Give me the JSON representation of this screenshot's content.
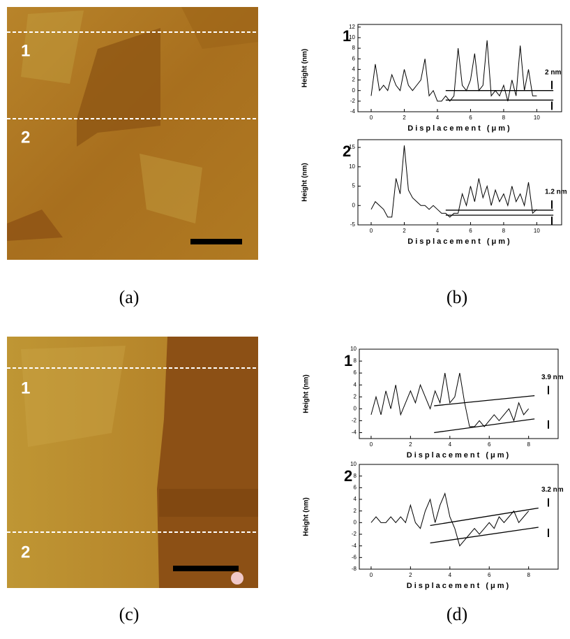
{
  "images": [
    {
      "caption": "(a)",
      "line_labels": [
        "1",
        "2"
      ]
    },
    {
      "caption": "(c)",
      "line_labels": [
        "1",
        "2"
      ]
    }
  ],
  "captions": [
    "(b)",
    "(d)"
  ],
  "chart_data": [
    {
      "type": "line",
      "panel_label": "1",
      "y_label": "Height (nm)",
      "x_label": "Displacement (μm)",
      "annotation": "2 nm",
      "color": "#000000",
      "x": [
        0,
        0.25,
        0.5,
        0.75,
        1,
        1.25,
        1.5,
        1.75,
        2,
        2.25,
        2.5,
        2.75,
        3,
        3.25,
        3.5,
        3.75,
        4,
        4.25,
        4.5,
        4.75,
        5,
        5.25,
        5.5,
        5.75,
        6,
        6.25,
        6.5,
        6.75,
        7,
        7.25,
        7.5,
        7.75,
        8,
        8.25,
        8.5,
        8.75,
        9,
        9.25,
        9.5,
        9.75,
        10
      ],
      "values": [
        -1,
        5,
        0,
        1,
        0,
        3,
        1,
        0,
        4,
        1,
        0,
        1,
        2,
        6,
        -1,
        0,
        -2,
        -2,
        -1,
        -2,
        -1,
        8,
        1,
        0,
        2,
        7,
        0,
        1,
        9.5,
        -1,
        0,
        -1,
        1,
        -2,
        2,
        -1,
        8.5,
        0,
        4,
        -1,
        -1
      ],
      "ref_lines": [
        {
          "x": [
            4.5,
            11
          ],
          "y": [
            0,
            0
          ]
        },
        {
          "x": [
            4.5,
            11
          ],
          "y": [
            -1.8,
            -1.8
          ]
        }
      ],
      "xlim": [
        -0.8,
        11.5
      ],
      "ylim": [
        -4,
        12.5
      ],
      "xticks": [
        0,
        2,
        4,
        6,
        8,
        10
      ],
      "yticks": [
        -4,
        -2,
        0,
        2,
        4,
        6,
        8,
        10,
        12
      ]
    },
    {
      "type": "line",
      "panel_label": "2",
      "y_label": "Height (nm)",
      "x_label": "Displacement (μm)",
      "annotation": "1.2 nm",
      "color": "#000000",
      "x": [
        0,
        0.25,
        0.5,
        0.75,
        1,
        1.25,
        1.5,
        1.75,
        2,
        2.25,
        2.5,
        2.75,
        3,
        3.25,
        3.5,
        3.75,
        4,
        4.25,
        4.5,
        4.75,
        5,
        5.25,
        5.5,
        5.75,
        6,
        6.25,
        6.5,
        6.75,
        7,
        7.25,
        7.5,
        7.75,
        8,
        8.25,
        8.5,
        8.75,
        9,
        9.25,
        9.5,
        9.75,
        10
      ],
      "values": [
        -1,
        1,
        0,
        -1,
        -3,
        -3,
        7,
        3,
        15.5,
        4,
        2,
        1,
        0,
        0,
        -1,
        0,
        -1,
        -2,
        -2,
        -3,
        -2,
        -2,
        3,
        0,
        5,
        1,
        7,
        2,
        5,
        0,
        4,
        1,
        3,
        0,
        5,
        1,
        3,
        0,
        6,
        -2,
        -1
      ],
      "ref_lines": [
        {
          "x": [
            4.5,
            11
          ],
          "y": [
            -1.2,
            -1.2
          ]
        },
        {
          "x": [
            4.5,
            11
          ],
          "y": [
            -2.5,
            -2.5
          ]
        }
      ],
      "xlim": [
        -0.8,
        11.5
      ],
      "ylim": [
        -5,
        17
      ],
      "xticks": [
        0,
        2,
        4,
        6,
        8,
        10
      ],
      "yticks": [
        -5,
        0,
        5,
        10,
        15
      ]
    },
    {
      "type": "line",
      "panel_label": "1",
      "y_label": "Height (nm)",
      "x_label": "Displacement (μm)",
      "annotation": "3.9 nm",
      "color": "#000000",
      "x": [
        0,
        0.25,
        0.5,
        0.75,
        1,
        1.25,
        1.5,
        1.75,
        2,
        2.25,
        2.5,
        2.75,
        3,
        3.25,
        3.5,
        3.75,
        4,
        4.25,
        4.5,
        4.75,
        5,
        5.25,
        5.5,
        5.75,
        6,
        6.25,
        6.5,
        6.75,
        7,
        7.25,
        7.5,
        7.75,
        8
      ],
      "values": [
        -1,
        2,
        -1,
        3,
        0,
        4,
        -1,
        1,
        3,
        1,
        4,
        2,
        0,
        3,
        1,
        6,
        1,
        2,
        6,
        1,
        -3,
        -3,
        -2,
        -3,
        -2,
        -1,
        -2,
        -1,
        0,
        -2,
        1,
        -1,
        0
      ],
      "ref_lines": [
        {
          "x": [
            3.2,
            8.3
          ],
          "y": [
            0.5,
            2.2
          ]
        },
        {
          "x": [
            3.2,
            8.3
          ],
          "y": [
            -4,
            -1.7
          ]
        }
      ],
      "xlim": [
        -0.6,
        9.5
      ],
      "ylim": [
        -5,
        10
      ],
      "xticks": [
        0,
        2,
        4,
        6,
        8
      ],
      "yticks": [
        -4,
        -2,
        0,
        2,
        4,
        6,
        8,
        10
      ]
    },
    {
      "type": "line",
      "panel_label": "2",
      "y_label": "Height (nm)",
      "x_label": "Displacement (μm)",
      "annotation": "3.2 nm",
      "color": "#000000",
      "x": [
        0,
        0.25,
        0.5,
        0.75,
        1,
        1.25,
        1.5,
        1.75,
        2,
        2.25,
        2.5,
        2.75,
        3,
        3.25,
        3.5,
        3.75,
        4,
        4.25,
        4.5,
        4.75,
        5,
        5.25,
        5.5,
        5.75,
        6,
        6.25,
        6.5,
        6.75,
        7,
        7.25,
        7.5,
        7.75,
        8
      ],
      "values": [
        0,
        1,
        0,
        0,
        1,
        0,
        1,
        0,
        3,
        0,
        -1,
        2,
        4,
        0,
        3,
        5,
        1,
        -1,
        -4,
        -3,
        -2,
        -1,
        -2,
        -1,
        0,
        -1,
        1,
        0,
        1,
        2,
        0,
        1,
        2
      ],
      "ref_lines": [
        {
          "x": [
            3,
            8.5
          ],
          "y": [
            -0.5,
            2.5
          ]
        },
        {
          "x": [
            3,
            8.5
          ],
          "y": [
            -3.5,
            -0.8
          ]
        }
      ],
      "xlim": [
        -0.6,
        9.5
      ],
      "ylim": [
        -8,
        10
      ],
      "xticks": [
        0,
        2,
        4,
        6,
        8
      ],
      "yticks": [
        -8,
        -6,
        -4,
        -2,
        0,
        2,
        4,
        6,
        8,
        10
      ]
    }
  ]
}
